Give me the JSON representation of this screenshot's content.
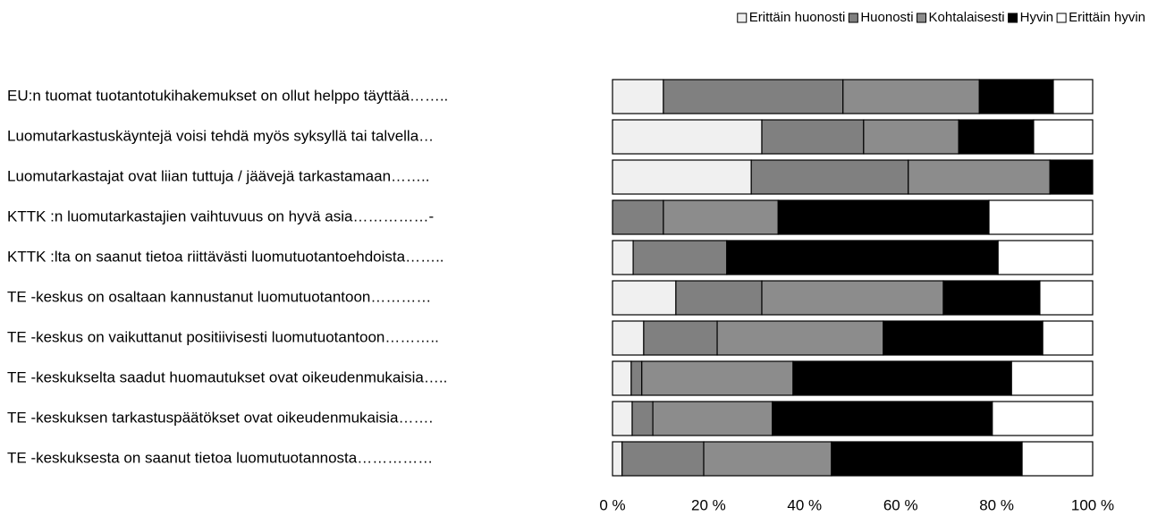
{
  "chart_data": {
    "type": "stacked-barh",
    "categories": [
      "EU:n tuomat tuotantotukihakemukset on ollut helppo täyttää……..",
      "Luomutarkastuskäyntejä voisi tehdä myös syksyllä tai talvella…",
      "Luomutarkastajat ovat liian tuttuja / jäävejä tarkastamaan……..",
      "KTTK :n luomutarkastajien vaihtuvuus on hyvä asia……………-",
      "KTTK :lta on saanut tietoa riittävästi luomutuotantoehdoista……..",
      "TE -keskus on osaltaan kannustanut luomutuotantoon…………",
      "TE -keskus on vaikuttanut positiivisesti luomutuotantoon………..",
      "TE -keskukselta saadut huomautukset ovat oikeudenmukaisia…..",
      "TE -keskuksen tarkastuspäätökset ovat oikeudenmukaisia…….",
      "TE -keskuksesta on saanut tietoa luomutuotannosta……………"
    ],
    "series": [
      {
        "name": "Erittäin huonosti",
        "color": "#f0f0f0",
        "values": [
          10.6,
          31.1,
          28.9,
          0,
          4.3,
          13.2,
          6.5,
          3.9,
          4.1,
          2.0
        ]
      },
      {
        "name": "Huonosti",
        "color": "#808080",
        "values": [
          37.4,
          21.2,
          32.7,
          10.6,
          19.5,
          17.9,
          15.3,
          2.2,
          4.3,
          17.0
        ]
      },
      {
        "name": "Kohtalaisesti",
        "color": "#8c8c8c",
        "values": [
          28.4,
          19.8,
          29.5,
          23.9,
          0,
          37.8,
          34.6,
          31.5,
          24.9,
          26.6
        ]
      },
      {
        "name": "Hyvin",
        "color": "#000000",
        "values": [
          15.4,
          15.6,
          8.9,
          43.9,
          56.5,
          20.1,
          33.2,
          45.5,
          45.8,
          39.7
        ]
      },
      {
        "name": "Erittäin hyvin",
        "color": "#ffffff",
        "values": [
          8.2,
          12.3,
          0,
          21.6,
          19.7,
          11.0,
          10.4,
          16.9,
          20.9,
          14.7
        ]
      }
    ],
    "xlim": [
      0,
      100
    ],
    "xticks": [
      {
        "value": 0,
        "label": "0 %"
      },
      {
        "value": 20,
        "label": "20 %"
      },
      {
        "value": 40,
        "label": "40 %"
      },
      {
        "value": 60,
        "label": "60 %"
      },
      {
        "value": 80,
        "label": "80 %"
      },
      {
        "value": 100,
        "label": "100 %"
      }
    ],
    "legend": "top-right"
  }
}
